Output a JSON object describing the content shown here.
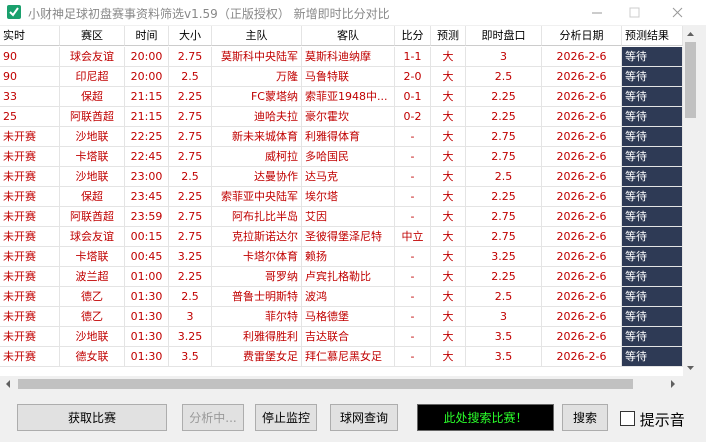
{
  "window": {
    "title": "小财神足球初盘赛事资料筛选v1.59（正版授权）  新增即时比分对比"
  },
  "table": {
    "headers": [
      "实时",
      "赛区",
      "时间",
      "大小",
      "主队",
      "客队",
      "比分",
      "预测",
      "即时盘口",
      "分析日期",
      "预测结果"
    ],
    "rows": [
      [
        "90",
        "球会友谊",
        "20:00",
        "2.75",
        "莫斯科中央陆军",
        "莫斯科迪纳摩",
        "1-1",
        "大",
        "3",
        "2026-2-6",
        "等待"
      ],
      [
        "90",
        "印尼超",
        "20:00",
        "2.5",
        "万隆",
        "马鲁特联",
        "2-0",
        "大",
        "2.5",
        "2026-2-6",
        "等待"
      ],
      [
        "33",
        "保超",
        "21:15",
        "2.25",
        "FC蒙塔纳",
        "索菲亚1948中...",
        "0-1",
        "大",
        "2.25",
        "2026-2-6",
        "等待"
      ],
      [
        "25",
        "阿联酋超",
        "21:15",
        "2.75",
        "迪哈夫拉",
        "豪尔霍坎",
        "0-2",
        "大",
        "2.25",
        "2026-2-6",
        "等待"
      ],
      [
        "未开赛",
        "沙地联",
        "22:25",
        "2.75",
        "新未来城体育",
        "利雅得体育",
        "-",
        "大",
        "2.75",
        "2026-2-6",
        "等待"
      ],
      [
        "未开赛",
        "卡塔联",
        "22:45",
        "2.75",
        "威柯拉",
        "多哈国民",
        "-",
        "大",
        "2.75",
        "2026-2-6",
        "等待"
      ],
      [
        "未开赛",
        "沙地联",
        "23:00",
        "2.5",
        "达曼协作",
        "达马克",
        "-",
        "大",
        "2.5",
        "2026-2-6",
        "等待"
      ],
      [
        "未开赛",
        "保超",
        "23:45",
        "2.25",
        "索菲亚中央陆军",
        "埃尔塔",
        "-",
        "大",
        "2.25",
        "2026-2-6",
        "等待"
      ],
      [
        "未开赛",
        "阿联酋超",
        "23:59",
        "2.75",
        "阿布扎比半岛",
        "艾因",
        "-",
        "大",
        "2.75",
        "2026-2-6",
        "等待"
      ],
      [
        "未开赛",
        "球会友谊",
        "00:15",
        "2.75",
        "克拉斯诺达尔",
        "圣彼得堡泽尼特",
        "中立",
        "大",
        "2.75",
        "2026-2-6",
        "等待"
      ],
      [
        "未开赛",
        "卡塔联",
        "00:45",
        "3.25",
        "卡塔尔体育",
        "赖扬",
        "-",
        "大",
        "3.25",
        "2026-2-6",
        "等待"
      ],
      [
        "未开赛",
        "波兰超",
        "01:00",
        "2.25",
        "哥罗纳",
        "卢宾扎格勒比",
        "-",
        "大",
        "2.25",
        "2026-2-6",
        "等待"
      ],
      [
        "未开赛",
        "德乙",
        "01:30",
        "2.5",
        "普鲁士明斯特",
        "波鸿",
        "-",
        "大",
        "2.5",
        "2026-2-6",
        "等待"
      ],
      [
        "未开赛",
        "德乙",
        "01:30",
        "3",
        "菲尔特",
        "马格德堡",
        "-",
        "大",
        "3",
        "2026-2-6",
        "等待"
      ],
      [
        "未开赛",
        "沙地联",
        "01:30",
        "3.25",
        "利雅得胜利",
        "吉达联合",
        "-",
        "大",
        "3.5",
        "2026-2-6",
        "等待"
      ],
      [
        "未开赛",
        "德女联",
        "01:30",
        "3.5",
        "费雷堡女足",
        "拜仁慕尼黑女足",
        "-",
        "大",
        "3.5",
        "2026-2-6",
        "等待"
      ]
    ]
  },
  "controls": {
    "fetch": "获取比赛",
    "analyze": "分析中...",
    "stop": "停止监控",
    "query": "球网查询",
    "search_box": "此处搜索比赛！",
    "search": "搜索",
    "sound": "提示音"
  }
}
